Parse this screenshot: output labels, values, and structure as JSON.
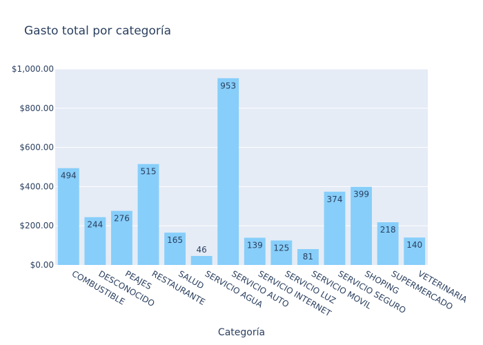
{
  "chart_data": {
    "type": "bar",
    "title": "Gasto total por categoría",
    "xlabel": "Categoría",
    "ylabel": "",
    "categories": [
      "COMBUSTIBLE",
      "DESCONOCIDO",
      "PEAJES",
      "RESTAURANTE",
      "SALUD",
      "SERVICIO AGUA",
      "SERVICIO AUTO",
      "SERVICIO INTERNET",
      "SERVICIO LUZ",
      "SERVICIO MOVIL",
      "SERVICIO SEGURO",
      "SHOPING",
      "SUPERMERCADO",
      "VETERINARIA"
    ],
    "values": [
      494,
      244,
      276,
      515,
      165,
      46,
      953,
      139,
      125,
      81,
      374,
      399,
      218,
      140
    ],
    "value_labels": [
      "494",
      "244",
      "276",
      "515",
      "165",
      "46",
      "953",
      "139",
      "125",
      "81",
      "374",
      "399",
      "218",
      "140"
    ],
    "ylim": [
      0,
      1000
    ],
    "y_ticks": [
      0,
      200,
      400,
      600,
      800,
      1000
    ],
    "y_tick_labels": [
      "$0.00",
      "$200.00",
      "$400.00",
      "$600.00",
      "$800.00",
      "$1,000.00"
    ],
    "grid": true,
    "colors": {
      "bar": "#87cefa",
      "plot_bg": "#e5ecf6",
      "grid": "#ffffff",
      "text": "#2a3f5f"
    }
  }
}
